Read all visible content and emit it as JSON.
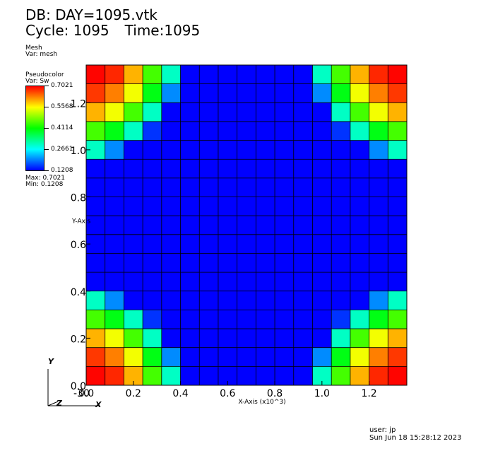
{
  "header": {
    "db_title": "DB: DAY=1095.vtk",
    "cycle": "Cycle: 1095",
    "time": "Time:1095"
  },
  "legend": {
    "mesh_label": "Mesh",
    "mesh_var": "Var: mesh",
    "pc_label": "Pseudocolor",
    "pc_var": "Var: Sw",
    "ticks": [
      "0.7021",
      "0.5568",
      "0.4114",
      "0.2661",
      "0.1208"
    ],
    "max_text": "Max:  0.7021",
    "min_text": "Min:  0.1208",
    "colors": [
      "#0000ff",
      "#00ffff",
      "#00ff00",
      "#ffff00",
      "#ff0000"
    ]
  },
  "footer": {
    "user": "user: jp",
    "date": "Sun Jun 18 15:28:12 2023"
  },
  "triad": {
    "y": "Y",
    "z": "Z",
    "x": "X"
  },
  "chart_data": {
    "type": "heatmap",
    "variable": "Sw",
    "vmin": 0.1208,
    "vmax": 0.7021,
    "xlabel": "X-Axis (x10^3)",
    "ylabel": "Y-Axis",
    "xlim": [
      0,
      1.36
    ],
    "ylim": [
      0,
      1.36
    ],
    "xticks": [
      "0.0",
      "0.2",
      "0.4",
      "0.6",
      "0.8",
      "1.0",
      "1.2"
    ],
    "yticks": [
      "0.0",
      "0.2",
      "0.4",
      "0.6",
      "0.8",
      "1.0",
      "1.2"
    ],
    "xtick_values": [
      0,
      0.2,
      0.4,
      0.6,
      0.8,
      1.0,
      1.2
    ],
    "ytick_values": [
      0,
      0.2,
      0.4,
      0.6,
      0.8,
      1.0,
      1.2
    ],
    "xaxis_extra_label": "-30",
    "grid": false,
    "nx": 17,
    "ny": 17,
    "row_order": "top-to-bottom",
    "values": [
      [
        0.7,
        0.68,
        0.6,
        0.45,
        0.3,
        0.12,
        0.12,
        0.12,
        0.12,
        0.12,
        0.12,
        0.12,
        0.3,
        0.45,
        0.6,
        0.68,
        0.7
      ],
      [
        0.67,
        0.63,
        0.55,
        0.4,
        0.2,
        0.12,
        0.12,
        0.12,
        0.12,
        0.12,
        0.12,
        0.12,
        0.2,
        0.4,
        0.55,
        0.63,
        0.67
      ],
      [
        0.6,
        0.55,
        0.45,
        0.3,
        0.12,
        0.12,
        0.12,
        0.12,
        0.12,
        0.12,
        0.12,
        0.12,
        0.12,
        0.3,
        0.45,
        0.55,
        0.6
      ],
      [
        0.45,
        0.4,
        0.3,
        0.15,
        0.12,
        0.12,
        0.12,
        0.12,
        0.12,
        0.12,
        0.12,
        0.12,
        0.12,
        0.15,
        0.3,
        0.4,
        0.45
      ],
      [
        0.3,
        0.2,
        0.12,
        0.12,
        0.12,
        0.12,
        0.12,
        0.12,
        0.12,
        0.12,
        0.12,
        0.12,
        0.12,
        0.12,
        0.12,
        0.2,
        0.3
      ],
      [
        0.12,
        0.12,
        0.12,
        0.12,
        0.12,
        0.12,
        0.12,
        0.12,
        0.12,
        0.12,
        0.12,
        0.12,
        0.12,
        0.12,
        0.12,
        0.12,
        0.12
      ],
      [
        0.12,
        0.12,
        0.12,
        0.12,
        0.12,
        0.12,
        0.12,
        0.12,
        0.12,
        0.12,
        0.12,
        0.12,
        0.12,
        0.12,
        0.12,
        0.12,
        0.12
      ],
      [
        0.12,
        0.12,
        0.12,
        0.12,
        0.12,
        0.12,
        0.12,
        0.12,
        0.12,
        0.12,
        0.12,
        0.12,
        0.12,
        0.12,
        0.12,
        0.12,
        0.12
      ],
      [
        0.12,
        0.12,
        0.12,
        0.12,
        0.12,
        0.12,
        0.12,
        0.12,
        0.12,
        0.12,
        0.12,
        0.12,
        0.12,
        0.12,
        0.12,
        0.12,
        0.12
      ],
      [
        0.12,
        0.12,
        0.12,
        0.12,
        0.12,
        0.12,
        0.12,
        0.12,
        0.12,
        0.12,
        0.12,
        0.12,
        0.12,
        0.12,
        0.12,
        0.12,
        0.12
      ],
      [
        0.12,
        0.12,
        0.12,
        0.12,
        0.12,
        0.12,
        0.12,
        0.12,
        0.12,
        0.12,
        0.12,
        0.12,
        0.12,
        0.12,
        0.12,
        0.12,
        0.12
      ],
      [
        0.12,
        0.12,
        0.12,
        0.12,
        0.12,
        0.12,
        0.12,
        0.12,
        0.12,
        0.12,
        0.12,
        0.12,
        0.12,
        0.12,
        0.12,
        0.12,
        0.12
      ],
      [
        0.3,
        0.2,
        0.12,
        0.12,
        0.12,
        0.12,
        0.12,
        0.12,
        0.12,
        0.12,
        0.12,
        0.12,
        0.12,
        0.12,
        0.12,
        0.2,
        0.3
      ],
      [
        0.45,
        0.4,
        0.3,
        0.15,
        0.12,
        0.12,
        0.12,
        0.12,
        0.12,
        0.12,
        0.12,
        0.12,
        0.12,
        0.15,
        0.3,
        0.4,
        0.45
      ],
      [
        0.6,
        0.55,
        0.45,
        0.3,
        0.12,
        0.12,
        0.12,
        0.12,
        0.12,
        0.12,
        0.12,
        0.12,
        0.12,
        0.3,
        0.45,
        0.55,
        0.6
      ],
      [
        0.67,
        0.63,
        0.55,
        0.4,
        0.2,
        0.12,
        0.12,
        0.12,
        0.12,
        0.12,
        0.12,
        0.12,
        0.2,
        0.4,
        0.55,
        0.63,
        0.67
      ],
      [
        0.7,
        0.68,
        0.6,
        0.45,
        0.3,
        0.12,
        0.12,
        0.12,
        0.12,
        0.12,
        0.12,
        0.12,
        0.3,
        0.45,
        0.6,
        0.68,
        0.7
      ]
    ]
  }
}
